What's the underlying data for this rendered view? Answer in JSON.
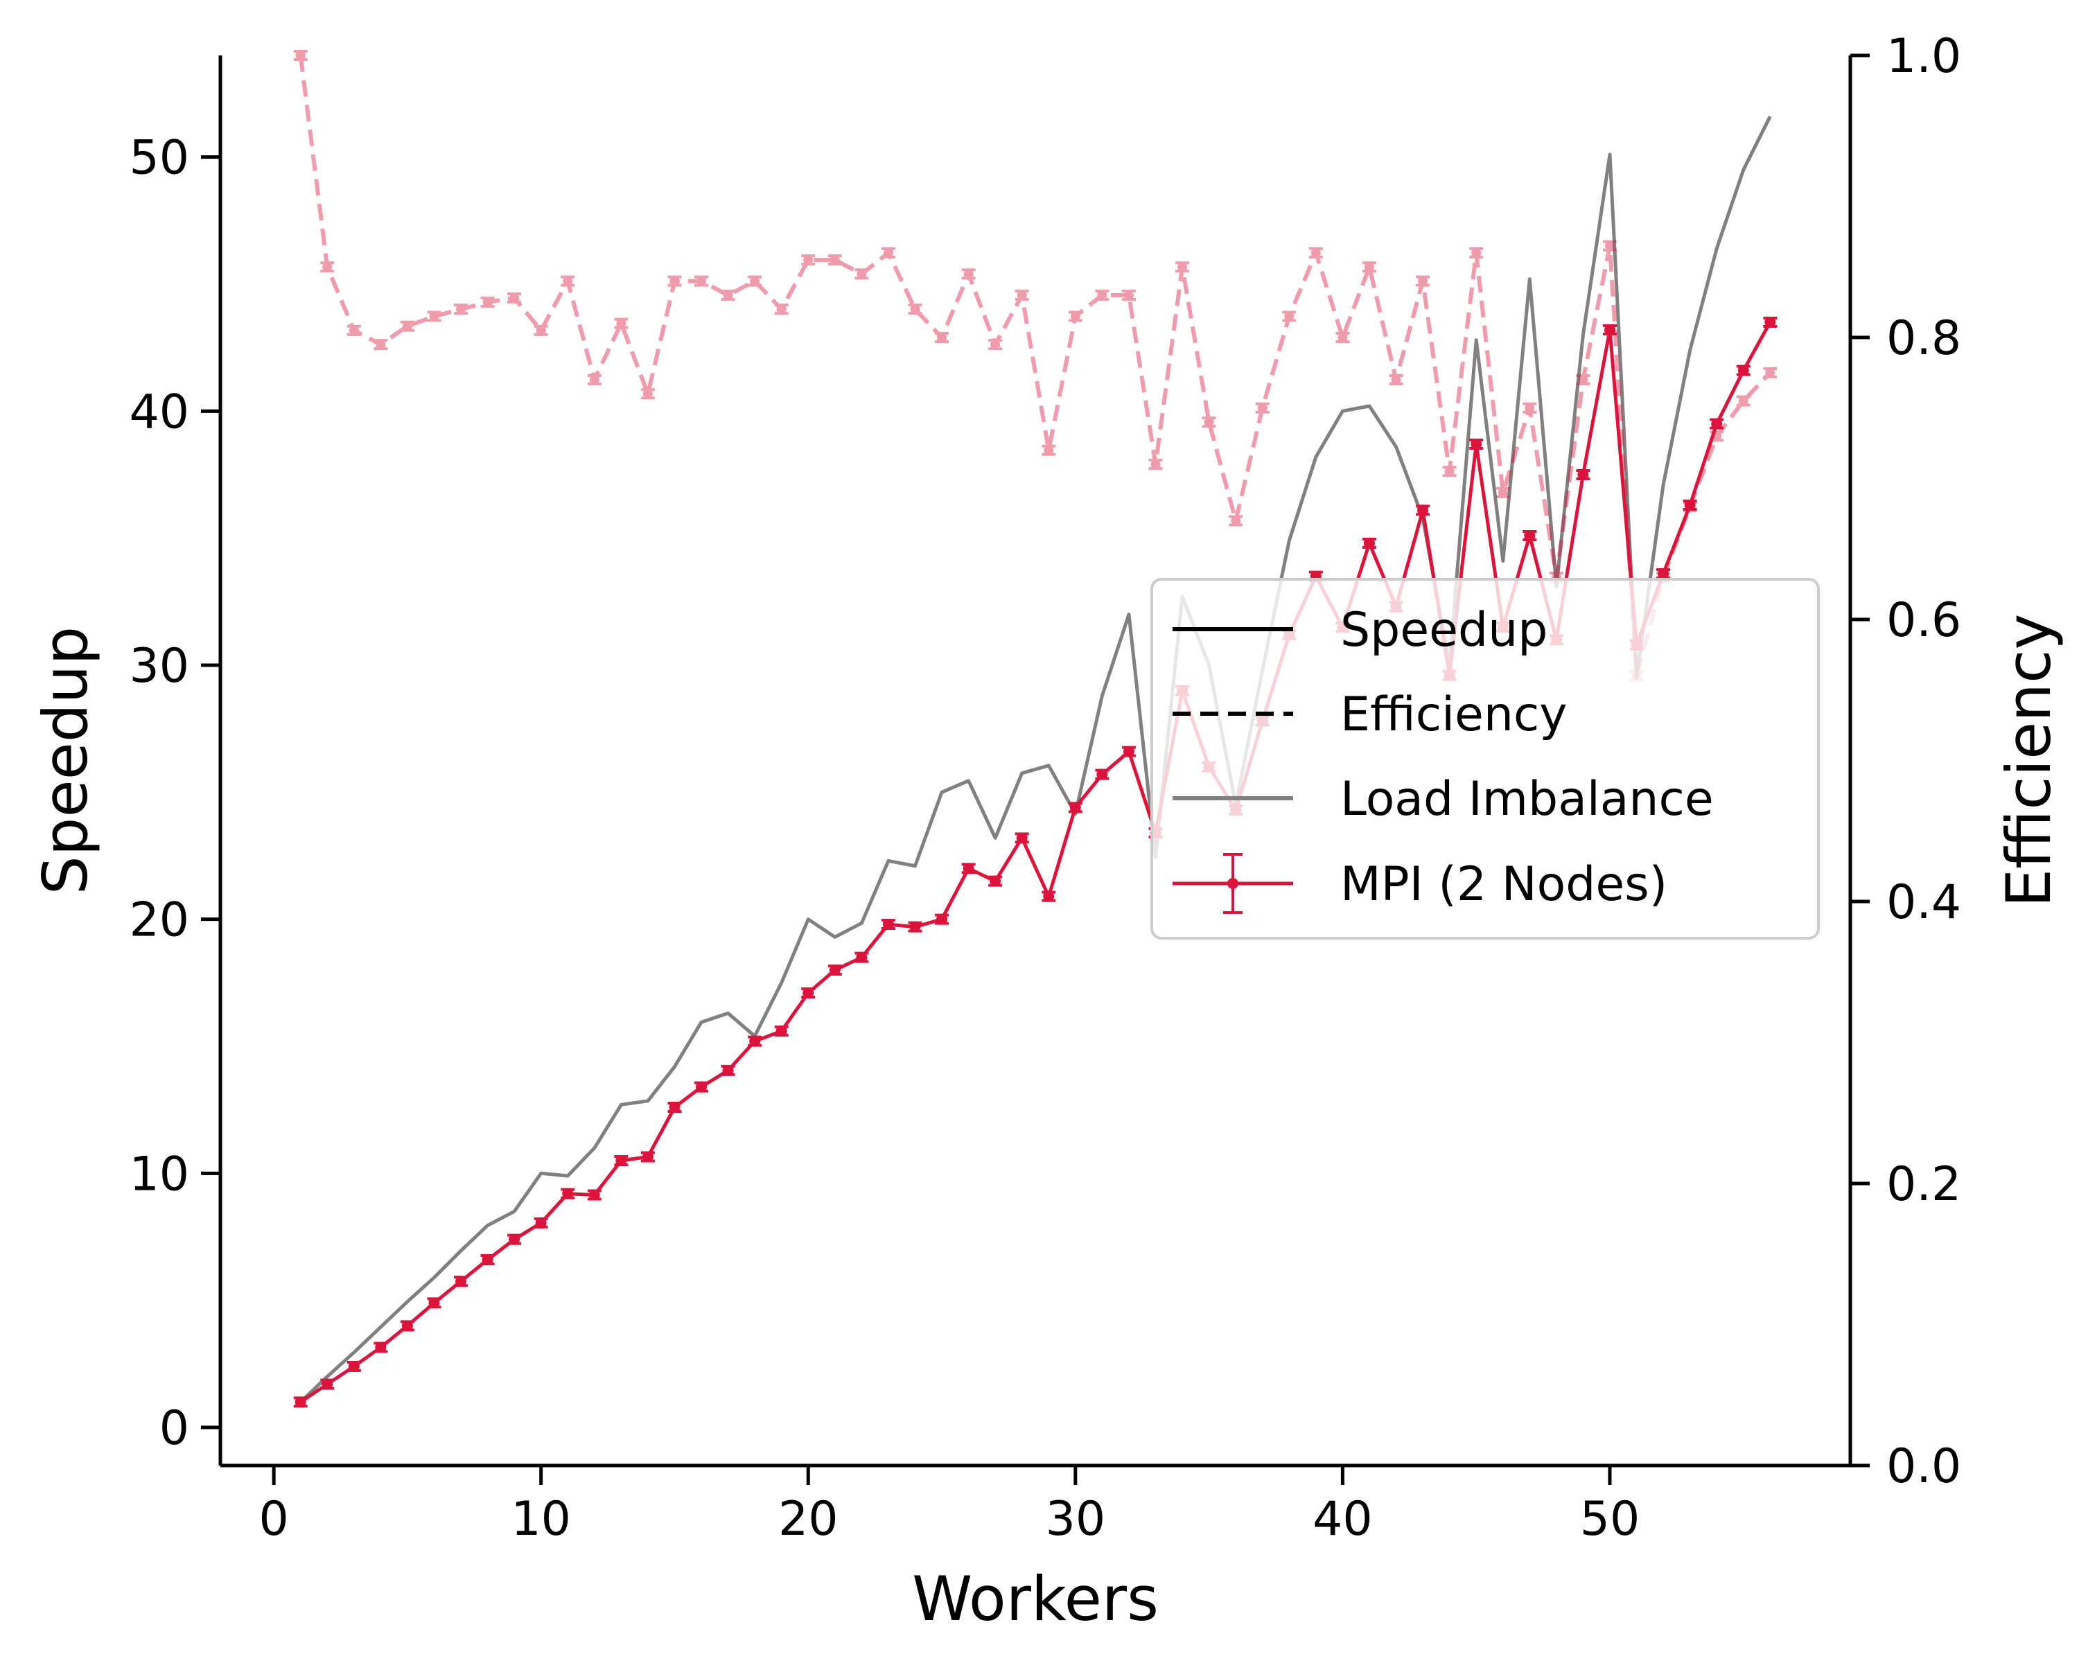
{
  "chart_data": {
    "type": "line",
    "xlabel": "Workers",
    "ylabel_left": "Speedup",
    "ylabel_right": "Efficiency",
    "xlim": [
      -2,
      59
    ],
    "ylim_left": [
      -1.5,
      54
    ],
    "ylim_right": [
      0.0,
      1.0
    ],
    "xticks": [
      0,
      10,
      20,
      30,
      40,
      50
    ],
    "yticks_left": [
      0,
      10,
      20,
      30,
      40,
      50
    ],
    "yticks_right": [
      0.0,
      0.2,
      0.4,
      0.6,
      0.8,
      1.0
    ],
    "xtick_labels": [
      "0",
      "10",
      "20",
      "30",
      "40",
      "50"
    ],
    "ytick_labels_left": [
      "0",
      "10",
      "20",
      "30",
      "40",
      "50"
    ],
    "ytick_labels_right": [
      "0.0",
      "0.2",
      "0.4",
      "0.6",
      "0.8",
      "1.0"
    ],
    "grid": false,
    "legend_position": "center-right",
    "x": [
      1,
      2,
      3,
      4,
      5,
      6,
      7,
      8,
      9,
      10,
      11,
      12,
      13,
      14,
      15,
      16,
      17,
      18,
      19,
      20,
      21,
      22,
      23,
      24,
      25,
      26,
      27,
      28,
      29,
      30,
      31,
      32,
      33,
      34,
      35,
      36,
      37,
      38,
      39,
      40,
      41,
      42,
      43,
      44,
      45,
      46,
      47,
      48,
      49,
      50,
      51,
      52,
      53,
      54,
      55,
      56
    ],
    "series": [
      {
        "name": "MPI (2 Nodes)",
        "kind": "speedup",
        "axis": "left",
        "color": "#dc143c",
        "values": [
          1.0,
          1.7,
          2.4,
          3.15,
          4.0,
          4.9,
          5.75,
          6.6,
          7.4,
          8.05,
          9.2,
          9.15,
          10.5,
          10.65,
          12.6,
          13.4,
          14.05,
          15.2,
          15.6,
          17.1,
          18.0,
          18.5,
          19.8,
          19.7,
          20.0,
          22.0,
          21.5,
          23.2,
          20.9,
          24.4,
          25.7,
          26.6,
          23.4,
          29.0,
          26.0,
          24.3,
          27.8,
          31.2,
          33.5,
          31.5,
          34.8,
          32.3,
          36.1,
          29.6,
          38.7,
          31.5,
          35.1,
          31.0,
          37.5,
          43.2,
          30.8,
          33.6,
          36.3,
          39.5,
          41.6,
          43.5
        ]
      },
      {
        "name": "Efficiency",
        "kind": "efficiency",
        "axis": "right",
        "color": "#dc143c",
        "values": [
          1.0,
          0.85,
          0.805,
          0.795,
          0.808,
          0.815,
          0.82,
          0.825,
          0.828,
          0.805,
          0.84,
          0.77,
          0.81,
          0.76,
          0.84,
          0.84,
          0.83,
          0.84,
          0.82,
          0.855,
          0.855,
          0.845,
          0.86,
          0.82,
          0.8,
          0.845,
          0.795,
          0.83,
          0.72,
          0.815,
          0.83,
          0.83,
          0.71,
          0.85,
          0.74,
          0.67,
          0.75,
          0.815,
          0.86,
          0.8,
          0.85,
          0.77,
          0.84,
          0.705,
          0.86,
          0.69,
          0.75,
          0.63,
          0.77,
          0.865,
          0.56,
          0.63,
          0.68,
          0.73,
          0.755,
          0.775
        ]
      },
      {
        "name": "Load Imbalance",
        "kind": "load-imbalance",
        "axis": "left",
        "color": "#808080",
        "values": [
          1.0,
          2.0,
          2.95,
          3.95,
          4.95,
          5.9,
          6.95,
          7.95,
          8.5,
          10.0,
          9.9,
          11.0,
          12.7,
          12.85,
          14.2,
          15.95,
          16.3,
          15.4,
          17.5,
          20.0,
          19.3,
          19.85,
          22.3,
          22.1,
          25.0,
          25.45,
          23.2,
          25.75,
          26.05,
          24.15,
          28.8,
          32.0,
          22.45,
          32.7,
          30.0,
          24.5,
          29.8,
          34.9,
          38.2,
          40.0,
          40.2,
          38.6,
          35.8,
          30.0,
          42.8,
          34.1,
          45.2,
          33.1,
          43.0,
          50.1,
          29.5,
          37.1,
          42.4,
          46.4,
          49.5,
          51.6
        ]
      }
    ],
    "legend": [
      {
        "label": "Speedup",
        "style": "solid",
        "color": "#000000"
      },
      {
        "label": "Efficiency",
        "style": "dashed",
        "color": "#000000"
      },
      {
        "label": "Load Imbalance",
        "style": "solid",
        "color": "#808080"
      },
      {
        "label": "MPI (2 Nodes)",
        "style": "errorbar",
        "color": "#dc143c"
      }
    ]
  }
}
